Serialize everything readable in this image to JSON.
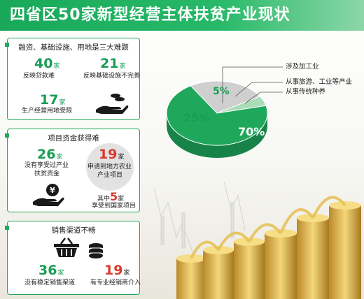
{
  "title": "四省区50家新型经营主体扶贫产业现状",
  "panel1": {
    "heading": "融资、基础设施、用地是三大难题",
    "stats": [
      {
        "value": "40",
        "unit": "家",
        "label": "反映贷款难"
      },
      {
        "value": "21",
        "unit": "家",
        "label": "反映基础设施不完善"
      },
      {
        "value": "17",
        "unit": "家",
        "label": "生产经营用地受限"
      }
    ]
  },
  "panel2": {
    "heading": "项目资金获得难",
    "no_support": {
      "value": "26",
      "unit": "家",
      "line1": "没有享受过产业",
      "line2": "扶贫资金"
    },
    "local": {
      "value": "19",
      "unit": "家",
      "line1": "申请到地方农业",
      "line2": "产业项目"
    },
    "national": {
      "prefix": "其中",
      "value": "5",
      "unit": "家",
      "label": "享受到国家项目"
    }
  },
  "panel3": {
    "heading": "销售渠道不畅",
    "no_channel": {
      "value": "36",
      "unit": "家",
      "label": "没有稳定销售渠道"
    },
    "dealer": {
      "value": "19",
      "unit": "家",
      "label": "有专业经销商介入"
    }
  },
  "chart_data": {
    "type": "pie",
    "series": [
      {
        "name": "从事传统种养",
        "value": 70,
        "label": "70%",
        "color": "#1fa85c"
      },
      {
        "name": "涉及加工业",
        "value": 25,
        "label": "25%",
        "color": "#cfcfcf"
      },
      {
        "name": "从事旅游、工业等产业",
        "value": 5,
        "label": "5%",
        "color": "#a9dcb8"
      }
    ]
  },
  "colors": {
    "accent": "#21a85c",
    "red": "#d93a2b"
  }
}
